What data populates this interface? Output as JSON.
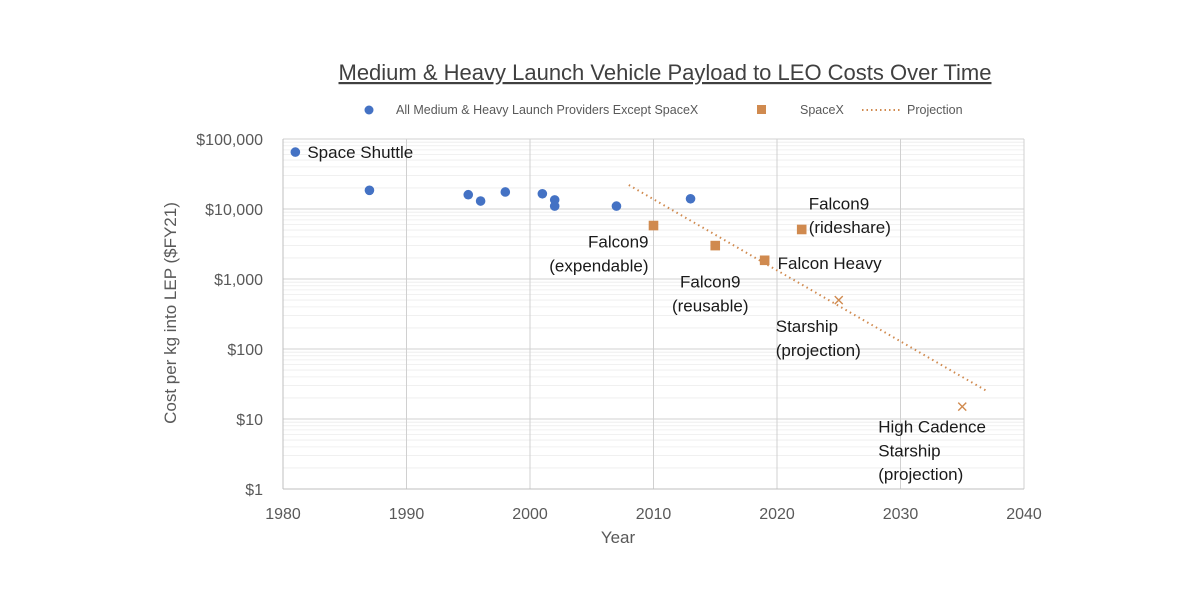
{
  "chart_data": {
    "type": "scatter",
    "title": "Medium & Heavy Launch Vehicle Payload to LEO Costs Over Time",
    "xlabel": "Year",
    "ylabel": "Cost per kg into LEP ($FY21)",
    "xlim": [
      1980,
      2040
    ],
    "ylim": [
      1,
      100000
    ],
    "y_scale": "log",
    "x_ticks": [
      1980,
      1990,
      2000,
      2010,
      2020,
      2030,
      2040
    ],
    "y_ticks": [
      {
        "value": 1,
        "label": "$1"
      },
      {
        "value": 10,
        "label": "$10"
      },
      {
        "value": 100,
        "label": "$100"
      },
      {
        "value": 1000,
        "label": "$1,000"
      },
      {
        "value": 10000,
        "label": "$10,000"
      },
      {
        "value": 100000,
        "label": "$100,000"
      }
    ],
    "grid": true,
    "legend_position": "top",
    "series": [
      {
        "name": "All Medium & Heavy Launch Providers Except SpaceX",
        "marker": "circle",
        "color": "#4472C4",
        "points": [
          {
            "x": 1981,
            "y": 65000
          },
          {
            "x": 1987,
            "y": 18500
          },
          {
            "x": 1995,
            "y": 16000
          },
          {
            "x": 1996,
            "y": 13000
          },
          {
            "x": 1998,
            "y": 17500
          },
          {
            "x": 2001,
            "y": 16500
          },
          {
            "x": 2002,
            "y": 13500
          },
          {
            "x": 2002,
            "y": 11000
          },
          {
            "x": 2007,
            "y": 11000
          },
          {
            "x": 2013,
            "y": 14000
          }
        ]
      },
      {
        "name": "SpaceX",
        "marker": "square",
        "color": "#D08A4F",
        "points": [
          {
            "x": 2010,
            "y": 5800
          },
          {
            "x": 2015,
            "y": 3000
          },
          {
            "x": 2019,
            "y": 1850
          },
          {
            "x": 2022,
            "y": 5100
          }
        ]
      },
      {
        "name": "",
        "marker": "x",
        "color": "#D08A4F",
        "points": [
          {
            "x": 2025,
            "y": 500
          },
          {
            "x": 2035,
            "y": 15
          }
        ]
      },
      {
        "name": "Projection",
        "marker": "dotted-line",
        "color": "#D08A4F",
        "points": [
          {
            "x": 2008,
            "y": 22000
          },
          {
            "x": 2037,
            "y": 25
          }
        ]
      }
    ],
    "annotations": [
      {
        "lines": [
          "Space Shuttle"
        ],
        "x": 1981,
        "y": 65000,
        "anchor": "start",
        "dx": 12,
        "dy": 0
      },
      {
        "lines": [
          "Falcon9",
          "(expendable)"
        ],
        "x": 2010,
        "y": 5800,
        "anchor": "end",
        "dx": -5,
        "dy": 16
      },
      {
        "lines": [
          "Falcon9",
          "(reusable)"
        ],
        "x": 2015,
        "y": 3000,
        "anchor": "middle",
        "dx": -5,
        "dy": 36
      },
      {
        "lines": [
          "Falcon Heavy"
        ],
        "x": 2019,
        "y": 1850,
        "anchor": "start",
        "dx": 13,
        "dy": 3
      },
      {
        "lines": [
          "Falcon9",
          "(rideshare)"
        ],
        "x": 2022,
        "y": 5100,
        "anchor": "start",
        "dx": 7,
        "dy": -26
      },
      {
        "lines": [
          "Starship",
          "(projection)"
        ],
        "x": 2025,
        "y": 500,
        "anchor": "start",
        "dx": -63,
        "dy": 26
      },
      {
        "lines": [
          "High Cadence",
          "Starship",
          "(projection)"
        ],
        "x": 2035,
        "y": 15,
        "anchor": "start",
        "dx": -84,
        "dy": 20
      }
    ]
  }
}
